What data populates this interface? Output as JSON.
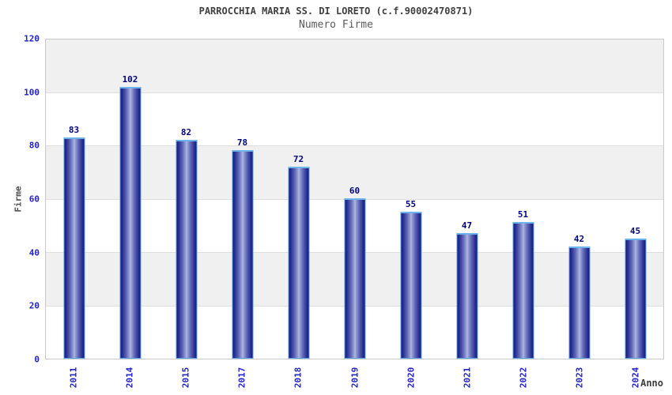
{
  "chart_data": {
    "type": "bar",
    "title": "PARROCCHIA MARIA SS. DI LORETO (c.f.90002470871)",
    "subtitle": "Numero Firme",
    "xlabel": "Anno",
    "ylabel": "Firme",
    "categories": [
      "2011",
      "2014",
      "2015",
      "2017",
      "2018",
      "2019",
      "2020",
      "2021",
      "2022",
      "2023",
      "2024"
    ],
    "values": [
      83,
      102,
      82,
      78,
      72,
      60,
      55,
      47,
      51,
      42,
      45
    ],
    "ylim": [
      0,
      120
    ],
    "yticks": [
      0,
      20,
      40,
      60,
      80,
      100,
      120
    ],
    "legend": "none",
    "grid": "horizontal-bands",
    "band_pattern_top_to_bottom": [
      "gray",
      "white",
      "gray",
      "white",
      "gray",
      "white"
    ],
    "colors": {
      "title": "#404040",
      "subtitle": "#5a5a5a",
      "tick_label": "#2222cc",
      "value_label": "#00007d",
      "axis_title": "#4d4d4d",
      "bar_edge": "#14187e",
      "bar_center": "#b2b9e2",
      "bar_border": "#57a2e2",
      "band_gray": "#f0f0f0",
      "band_white": "#ffffff",
      "frame": "#c8c8c8"
    }
  }
}
